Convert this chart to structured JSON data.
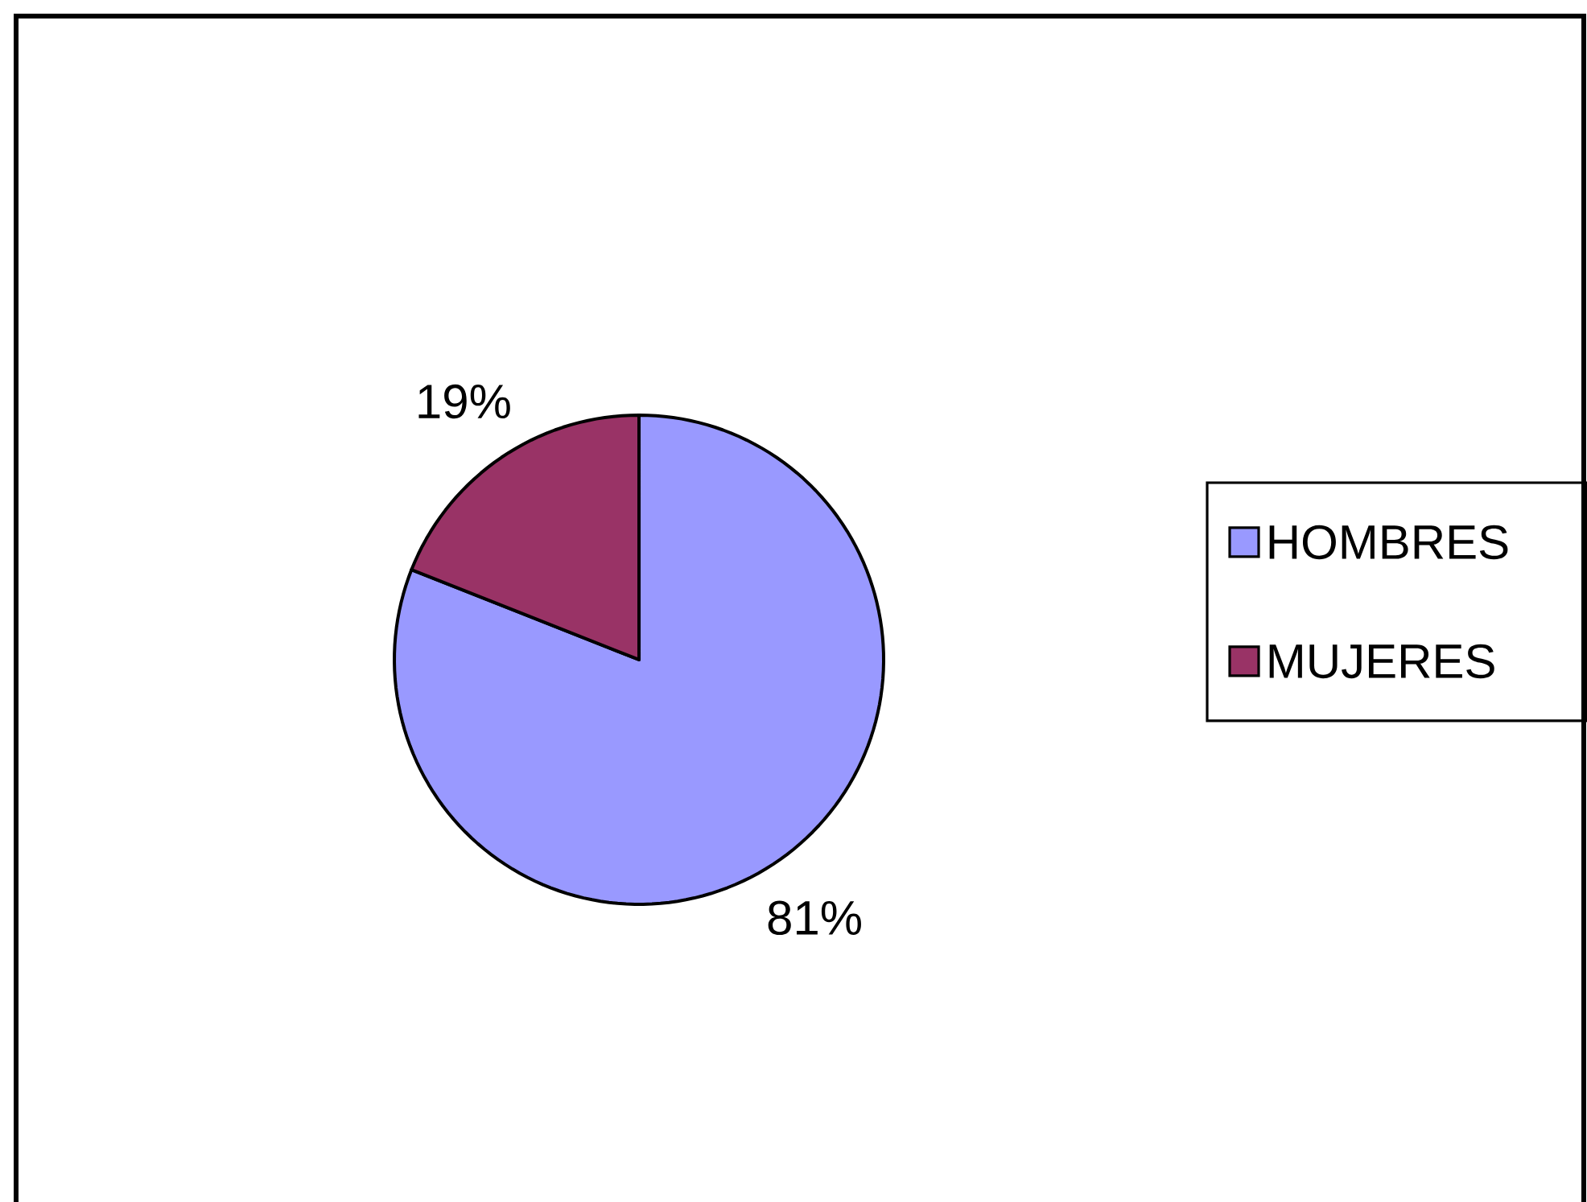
{
  "chart_data": {
    "type": "pie",
    "categories": [
      "HOMBRES",
      "MUJERES"
    ],
    "values": [
      81,
      19
    ],
    "colors": [
      "#9999ff",
      "#993366"
    ],
    "value_labels": [
      "81%",
      "19%"
    ],
    "legend": "right"
  }
}
